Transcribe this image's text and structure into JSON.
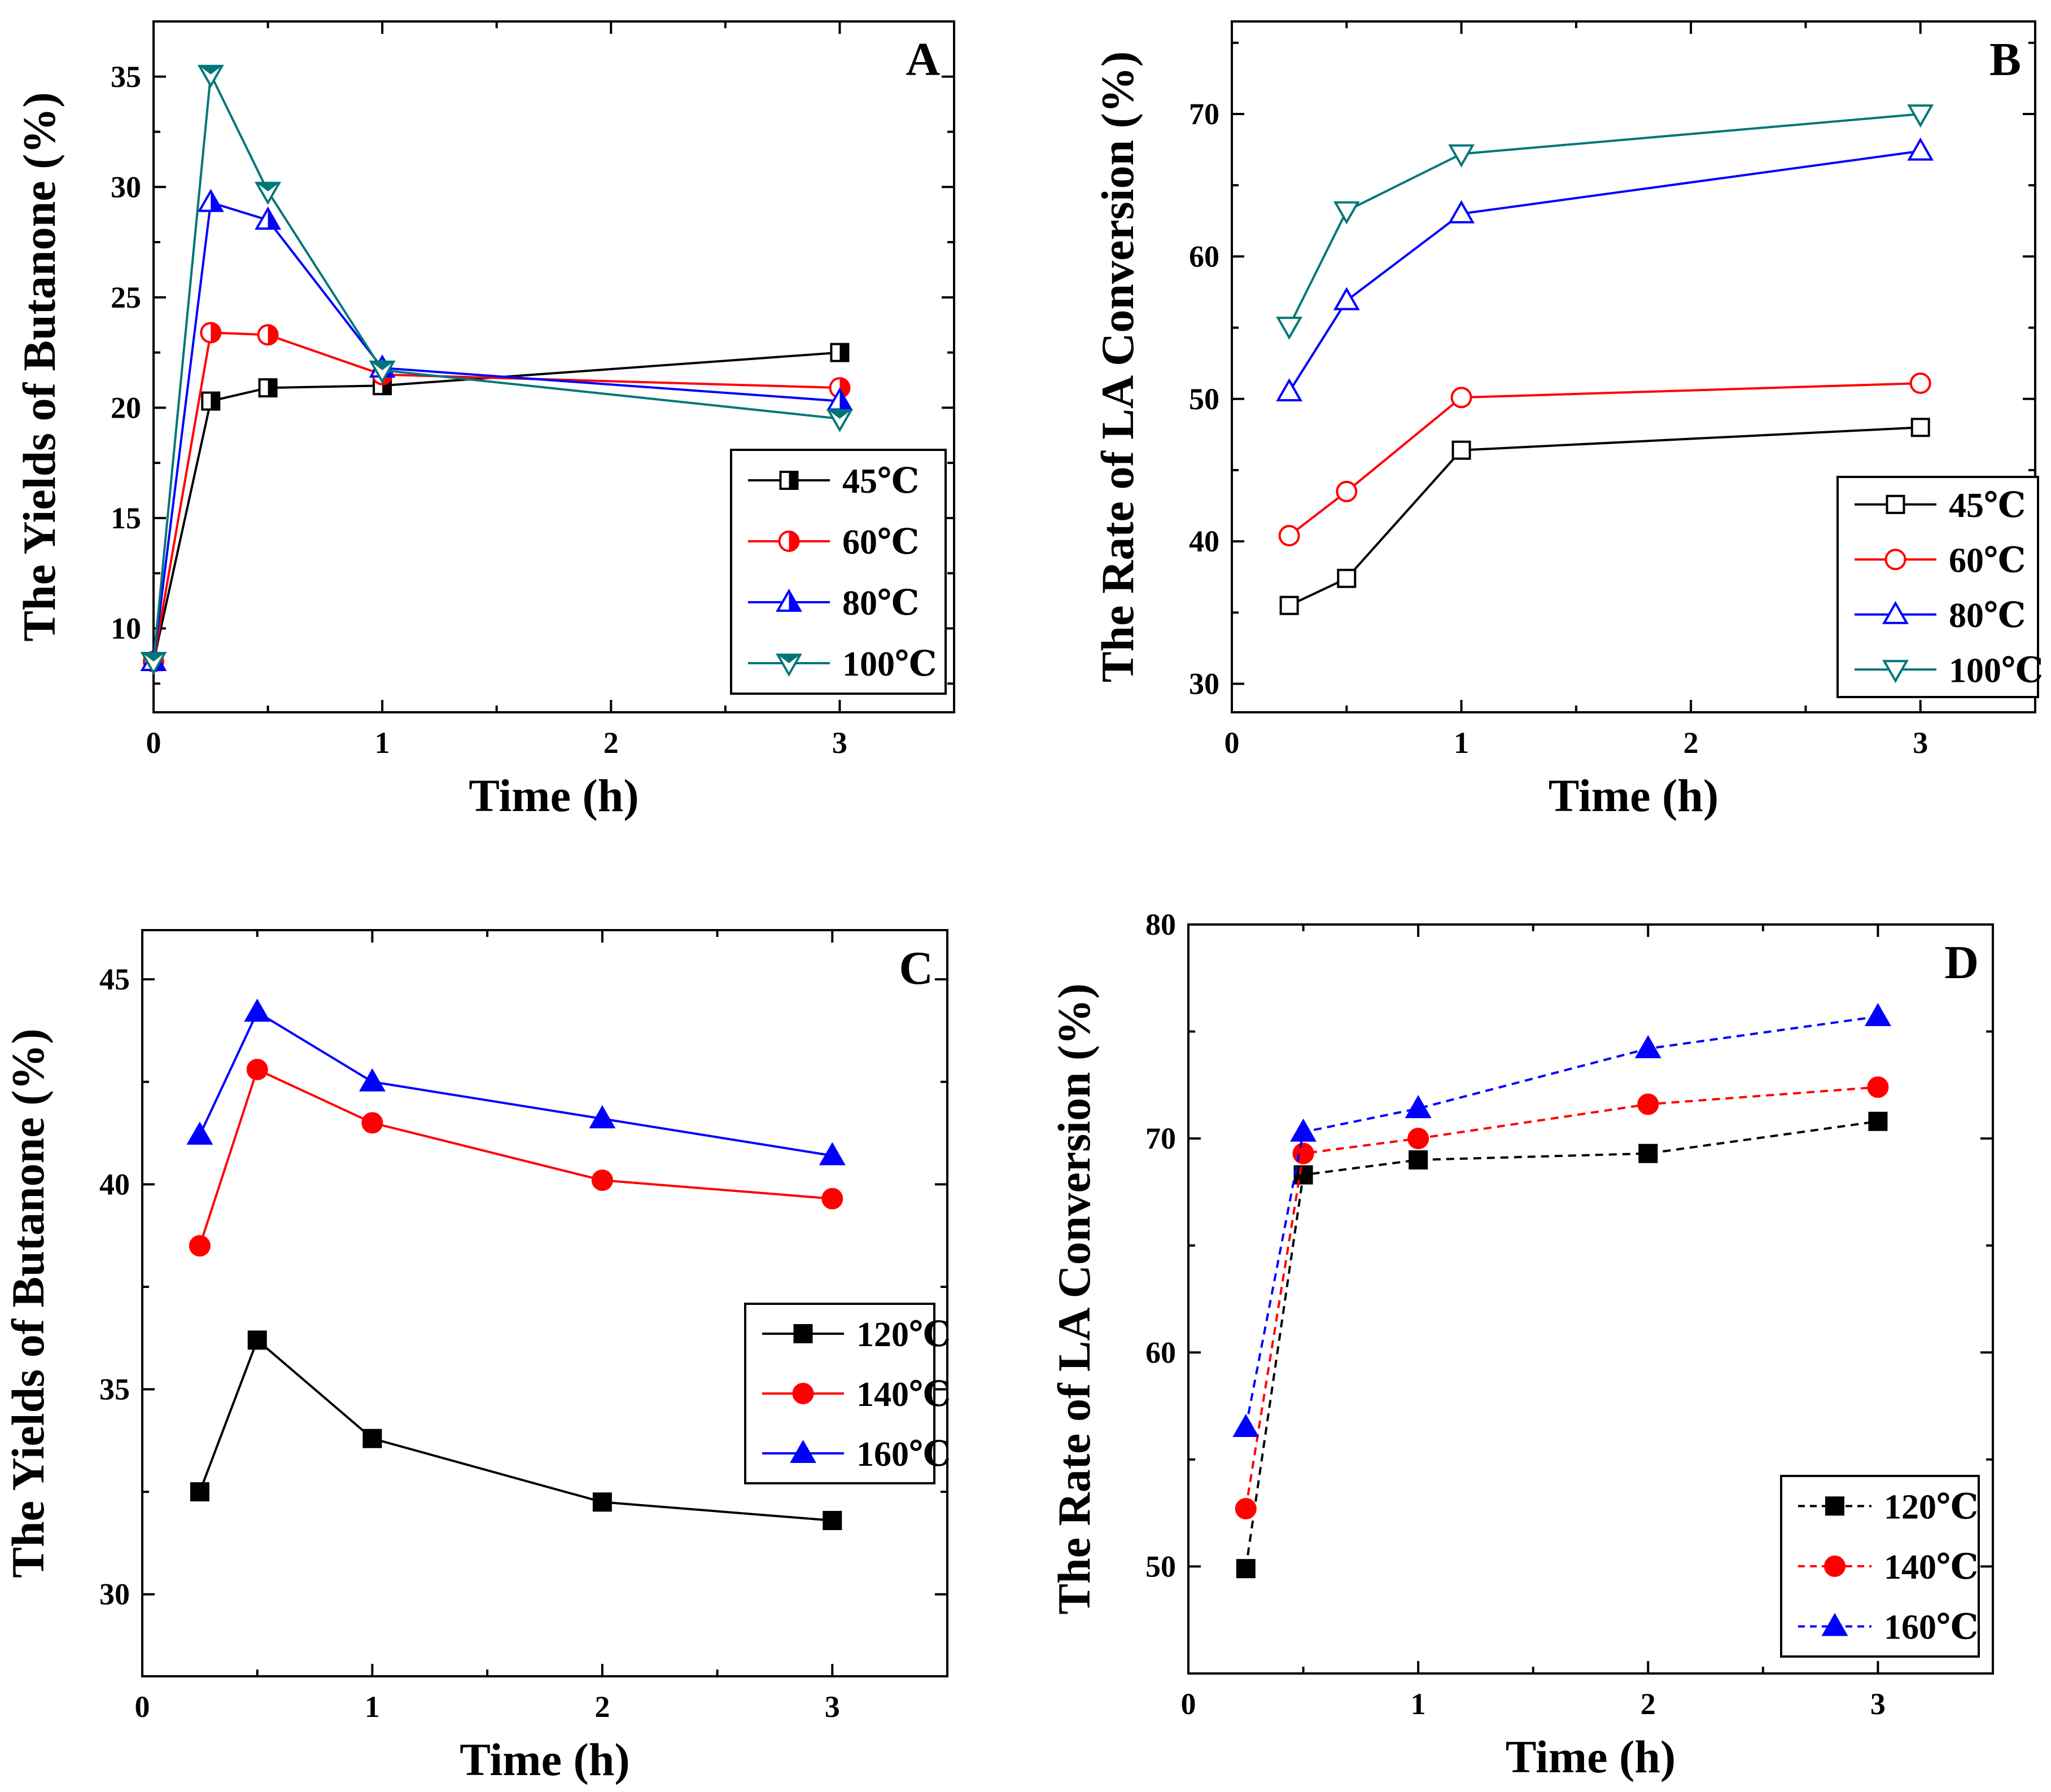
{
  "chart_data": [
    {
      "type": "line",
      "panel": "A",
      "xlabel": "Time (h)",
      "ylabel": "The Yields of Butanone (%)",
      "xlim": [
        0,
        3.5
      ],
      "ylim": [
        6.2,
        37.5
      ],
      "xticks": [
        0,
        1,
        2,
        3
      ],
      "yticks": [
        10,
        15,
        20,
        25,
        30,
        35
      ],
      "legend_position": "bottom-right",
      "series": [
        {
          "name": "45℃",
          "color": "#000000",
          "marker": "square-half",
          "x": [
            0,
            0.25,
            0.5,
            1,
            3
          ],
          "values": [
            8.5,
            20.3,
            20.9,
            21.0,
            22.5
          ]
        },
        {
          "name": "60℃",
          "color": "#ff0000",
          "marker": "circle-half",
          "x": [
            0,
            0.25,
            0.5,
            1,
            3
          ],
          "values": [
            8.5,
            23.4,
            23.3,
            21.5,
            20.9
          ]
        },
        {
          "name": "80℃",
          "color": "#0000ff",
          "marker": "triangle-up-half",
          "x": [
            0,
            0.25,
            0.5,
            1,
            3
          ],
          "values": [
            8.5,
            29.3,
            28.5,
            21.8,
            20.3
          ]
        },
        {
          "name": "100℃",
          "color": "#007777",
          "marker": "triangle-down-half",
          "x": [
            0,
            0.25,
            0.5,
            1,
            3
          ],
          "values": [
            8.5,
            35.1,
            29.8,
            21.7,
            19.5
          ]
        }
      ]
    },
    {
      "type": "line",
      "panel": "B",
      "xlabel": "Time (h)",
      "ylabel": "The Rate of LA Conversion (%)",
      "xlim": [
        0,
        3.5
      ],
      "ylim": [
        28,
        76.5
      ],
      "xticks": [
        0,
        1,
        2,
        3
      ],
      "yticks": [
        30,
        40,
        50,
        60,
        70
      ],
      "legend_position": "bottom-right",
      "series": [
        {
          "name": "45℃",
          "color": "#000000",
          "marker": "square-open",
          "x": [
            0.25,
            0.5,
            1,
            3
          ],
          "values": [
            35.5,
            37.4,
            46.4,
            48.0
          ]
        },
        {
          "name": "60℃",
          "color": "#ff0000",
          "marker": "circle-open",
          "x": [
            0.25,
            0.5,
            1,
            3
          ],
          "values": [
            40.4,
            43.5,
            50.1,
            51.1
          ]
        },
        {
          "name": "80℃",
          "color": "#0000ff",
          "marker": "triangle-up-open",
          "x": [
            0.25,
            0.5,
            1,
            3
          ],
          "values": [
            50.5,
            56.9,
            63.0,
            67.4
          ]
        },
        {
          "name": "100℃",
          "color": "#007777",
          "marker": "triangle-down-open",
          "x": [
            0.25,
            0.5,
            1,
            3
          ],
          "values": [
            55.1,
            63.2,
            67.2,
            70.0
          ]
        }
      ]
    },
    {
      "type": "line",
      "panel": "C",
      "xlabel": "Time (h)",
      "ylabel": "The Yields of Butanone (%)",
      "xlim": [
        0,
        3.5
      ],
      "ylim": [
        28,
        46.2
      ],
      "xticks": [
        0,
        1,
        2,
        3
      ],
      "yticks": [
        30,
        35,
        40,
        45
      ],
      "legend_position": "middle-right",
      "series": [
        {
          "name": "120℃",
          "color": "#000000",
          "marker": "square",
          "x": [
            0.25,
            0.5,
            1,
            2,
            3
          ],
          "values": [
            32.5,
            36.2,
            33.8,
            32.25,
            31.8
          ]
        },
        {
          "name": "140℃",
          "color": "#ff0000",
          "marker": "circle",
          "x": [
            0.25,
            0.5,
            1,
            2,
            3
          ],
          "values": [
            38.5,
            42.8,
            41.5,
            40.1,
            39.65
          ]
        },
        {
          "name": "160℃",
          "color": "#0000ff",
          "marker": "triangle-up",
          "x": [
            0.25,
            0.5,
            1,
            2,
            3
          ],
          "values": [
            41.2,
            44.2,
            42.5,
            41.6,
            40.7
          ]
        }
      ]
    },
    {
      "type": "line",
      "panel": "D",
      "xlabel": "Time (h)",
      "ylabel": "The Rate of LA Conversion (%)",
      "xlim": [
        0,
        3.5
      ],
      "ylim": [
        45,
        80
      ],
      "xticks": [
        0,
        1,
        2,
        3
      ],
      "yticks": [
        50,
        60,
        70,
        80
      ],
      "legend_position": "bottom-right",
      "line_style": "dashed",
      "series": [
        {
          "name": "120℃",
          "color": "#000000",
          "marker": "square",
          "x": [
            0.25,
            0.5,
            1,
            2,
            3
          ],
          "values": [
            49.9,
            68.3,
            69.0,
            69.3,
            70.8
          ]
        },
        {
          "name": "140℃",
          "color": "#ff0000",
          "marker": "circle",
          "x": [
            0.25,
            0.5,
            1,
            2,
            3
          ],
          "values": [
            52.7,
            69.3,
            70.0,
            71.6,
            72.4
          ]
        },
        {
          "name": "160℃",
          "color": "#0000ff",
          "marker": "triangle-up",
          "x": [
            0.25,
            0.5,
            1,
            2,
            3
          ],
          "values": [
            56.5,
            70.3,
            71.4,
            74.2,
            75.7
          ]
        }
      ]
    }
  ]
}
